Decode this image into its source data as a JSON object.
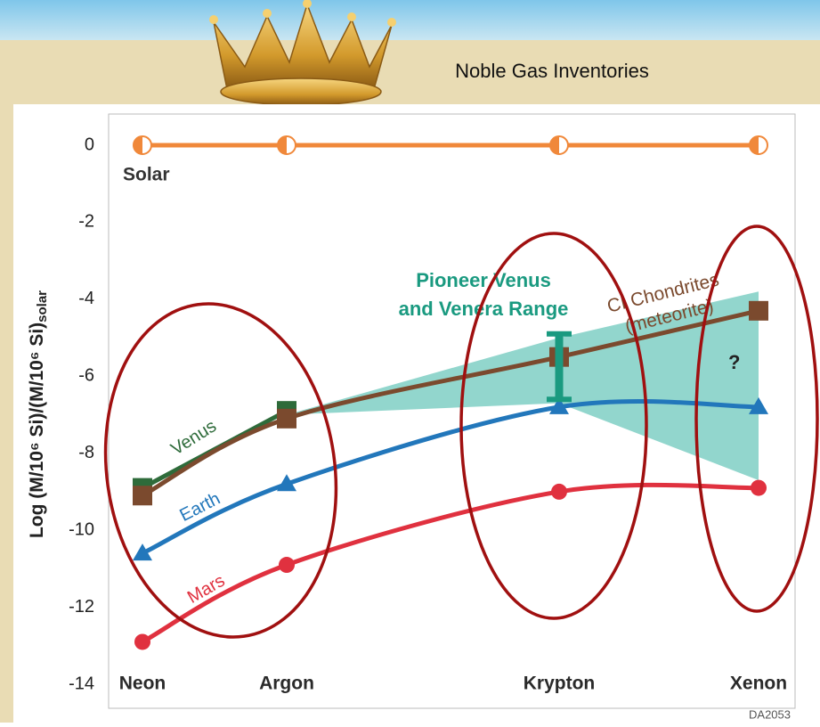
{
  "chart_data": {
    "type": "line",
    "title": "Noble Gas Inventories",
    "y_label": "Log (M/10⁶ Si)/(M/10⁶ Si)",
    "y_label_sub": "solar",
    "categories": [
      "Neon",
      "Argon",
      "Krypton",
      "Xenon"
    ],
    "ylim": [
      -14,
      0
    ],
    "yticks": [
      0,
      -2,
      -4,
      -6,
      -8,
      -10,
      -12,
      -14
    ],
    "series": [
      {
        "name": "Solar",
        "color": "#f0883a",
        "marker": "half-circle",
        "values": [
          0,
          0,
          0,
          0
        ]
      },
      {
        "name": "CI Chondrites",
        "name2": "(meteorite)",
        "color": "#7b4a2e",
        "marker": "square",
        "values": [
          -9.1,
          -7.1,
          -5.5,
          -4.3
        ]
      },
      {
        "name": "Venus",
        "color": "#2e6b3a",
        "marker": "square",
        "values": [
          -8.9,
          -6.9,
          null,
          null
        ]
      },
      {
        "name": "Earth",
        "color": "#2277bb",
        "marker": "triangle",
        "values": [
          -10.6,
          -8.8,
          -6.8,
          -6.8
        ]
      },
      {
        "name": "Mars",
        "color": "#e0313f",
        "marker": "circle",
        "values": [
          -12.9,
          -10.9,
          -9.0,
          -8.9
        ]
      }
    ],
    "band": {
      "color": "#7fcfc4",
      "upper": [
        null,
        -7.0,
        -5.0,
        -3.8
      ],
      "lower": [
        null,
        -7.0,
        -6.7,
        -8.7
      ]
    },
    "range": {
      "label": [
        "Pioneer Venus",
        "and Venera Range"
      ],
      "color": "#1a9a80",
      "high": -4.9,
      "low": -6.6
    },
    "question": "?",
    "code": "DA2053"
  }
}
